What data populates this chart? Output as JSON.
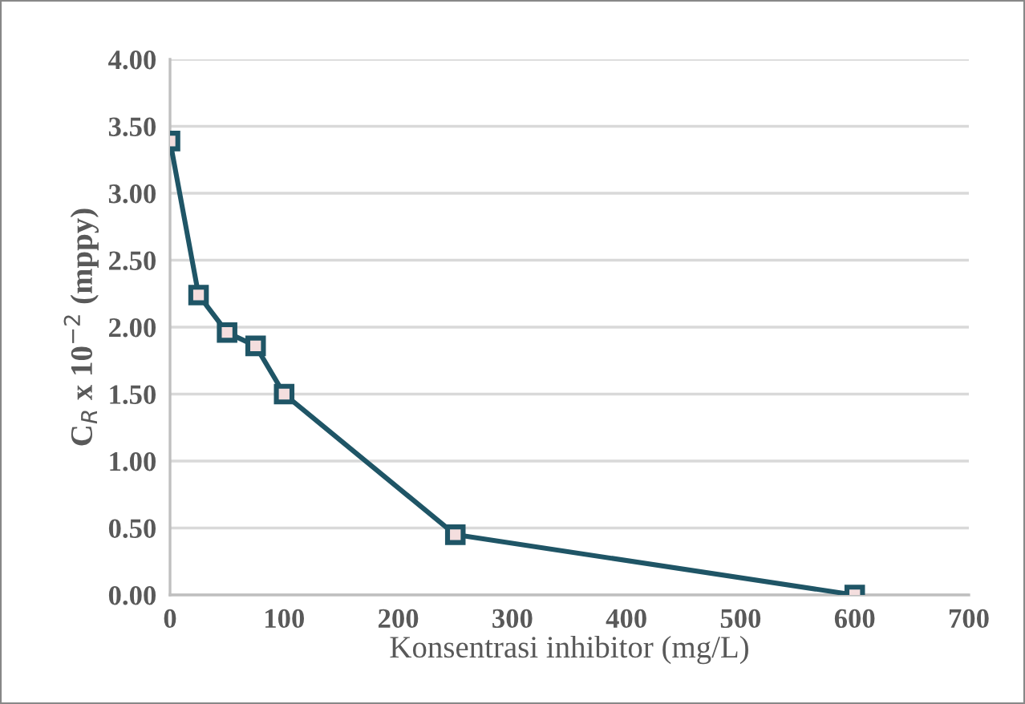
{
  "chart_data": {
    "type": "line",
    "xlabel": "Konsentrasi inhibitor (mg/L)",
    "ylabel": "C$_{R}$ x 10$^{−2}$ (mppy)",
    "x": [
      0,
      25,
      50,
      75,
      100,
      250,
      600
    ],
    "series": [
      {
        "color": "#1f5566",
        "values": [
          3.39,
          2.24,
          1.96,
          1.86,
          1.5,
          0.45,
          0.0
        ]
      }
    ],
    "xlim": [
      0,
      700
    ],
    "xticks": [
      0,
      100,
      200,
      300,
      400,
      500,
      600,
      700
    ],
    "ylim": [
      0,
      4
    ],
    "yticks": [
      {
        "value": 0,
        "label": "0.00"
      },
      {
        "value": 0.5,
        "label": "0.50"
      },
      {
        "value": 1,
        "label": "1.00"
      },
      {
        "value": 1.5,
        "label": "1.50"
      },
      {
        "value": 2,
        "label": "2.00"
      },
      {
        "value": 2.5,
        "label": "2.50"
      },
      {
        "value": 3,
        "label": "3.00"
      },
      {
        "value": 3.5,
        "label": "3.50"
      },
      {
        "value": 4,
        "label": "4.00"
      }
    ],
    "grid": "y",
    "marker": "square",
    "line_style": "solid",
    "legend": false
  }
}
